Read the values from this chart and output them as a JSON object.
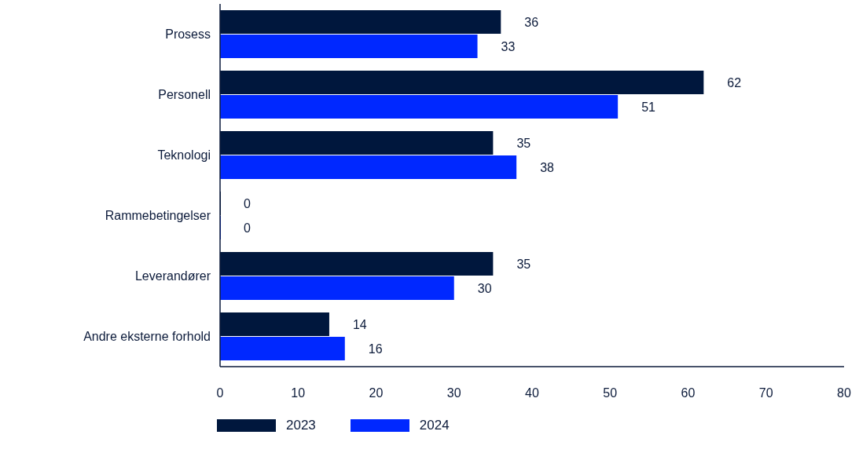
{
  "chart_data": {
    "type": "bar",
    "orientation": "horizontal",
    "categories": [
      "Prosess",
      "Personell",
      "Teknologi",
      "Rammebetingelser",
      "Leverandører",
      "Andre eksterne forhold"
    ],
    "series": [
      {
        "name": "2023",
        "color": "#00173d",
        "values": [
          36,
          62,
          35,
          0,
          35,
          14
        ]
      },
      {
        "name": "2024",
        "color": "#0028ff",
        "values": [
          33,
          51,
          38,
          0,
          30,
          16
        ]
      }
    ],
    "xlim": [
      0,
      80
    ],
    "xticks": [
      0,
      10,
      20,
      30,
      40,
      50,
      60,
      70,
      80
    ],
    "data_labels": true,
    "legend": "bottom left"
  }
}
